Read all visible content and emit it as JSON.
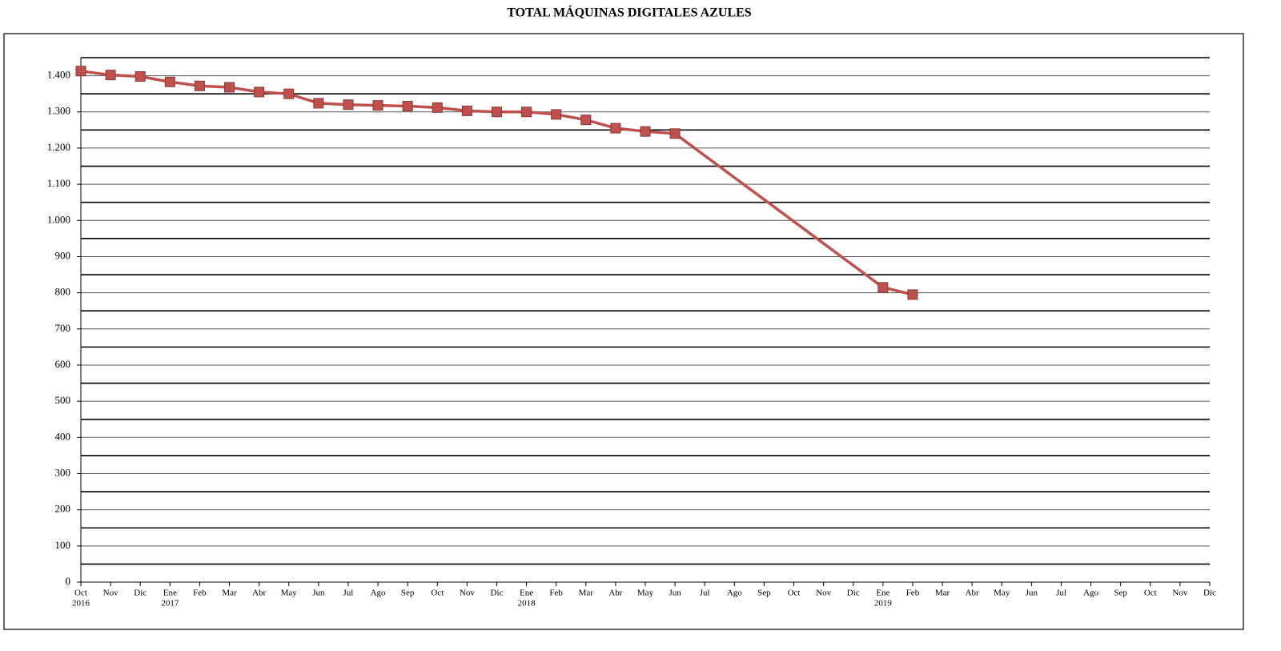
{
  "chart_data": {
    "type": "line",
    "title": "TOTAL MÁQUINAS DIGITALES AZULES",
    "categories": [
      "Oct",
      "Nov",
      "Dic",
      "Ene",
      "Feb",
      "Mar",
      "Abr",
      "May",
      "Jun",
      "Jul",
      "Ago",
      "Sep",
      "Oct",
      "Nov",
      "Dic",
      "Ene",
      "Feb",
      "Mar",
      "Abr",
      "May",
      "Jun",
      "Jul",
      "Ago",
      "Sep",
      "Oct",
      "Nov",
      "Dic",
      "Ene",
      "Feb",
      "Mar",
      "Abr",
      "May",
      "Jun",
      "Jul",
      "Ago",
      "Sep",
      "Oct",
      "Nov",
      "Dic"
    ],
    "year_labels": [
      "2016",
      null,
      null,
      "2017",
      null,
      null,
      null,
      null,
      null,
      null,
      null,
      null,
      null,
      null,
      null,
      "2018",
      null,
      null,
      null,
      null,
      null,
      null,
      null,
      null,
      null,
      null,
      null,
      "2019",
      null,
      null,
      null,
      null,
      null,
      null,
      null,
      null,
      null,
      null,
      null
    ],
    "series": [
      {
        "color": "#c0504d",
        "values": [
          1413,
          1402,
          1398,
          1383,
          1372,
          1368,
          1355,
          1350,
          1324,
          1320,
          1318,
          1316,
          1312,
          1303,
          1300,
          1300,
          1293,
          1278,
          1255,
          1246,
          1240,
          null,
          null,
          null,
          null,
          null,
          null,
          815,
          795,
          null,
          null,
          null,
          null,
          null,
          null,
          null,
          null,
          null,
          null
        ]
      }
    ],
    "span_gaps": true,
    "ylim": [
      0,
      1450
    ],
    "yticks": [
      0,
      100,
      200,
      300,
      400,
      500,
      600,
      700,
      800,
      900,
      {
        "value": 1000,
        "label": "1.000"
      },
      {
        "value": 1100,
        "label": "1.100"
      },
      {
        "value": 1200,
        "label": "1.200"
      },
      {
        "value": 1300,
        "label": "1.300"
      },
      {
        "value": 1400,
        "label": "1.400"
      }
    ],
    "minor_grid": [
      50,
      150,
      250,
      350,
      450,
      550,
      650,
      750,
      850,
      950,
      1050,
      1150,
      1250,
      1350,
      1450
    ],
    "grid": true
  }
}
